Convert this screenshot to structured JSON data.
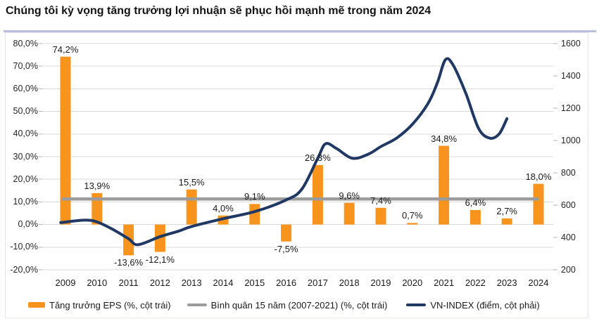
{
  "title": "Chúng tôi kỳ vọng tăng trưởng lợi nhuận sẽ phục hồi mạnh mẽ trong năm 2024",
  "chart_data": {
    "type": "combo",
    "categories": [
      "2009",
      "2010",
      "2011",
      "2012",
      "2013",
      "2014",
      "2015",
      "2016",
      "2017",
      "2018",
      "2019",
      "2020",
      "2021",
      "2022",
      "2023",
      "2024"
    ],
    "series": [
      {
        "name": "Tăng trưởng EPS (%, cột trái)",
        "type": "bar",
        "axis": "left",
        "color": "#F7941D",
        "values": [
          74.2,
          13.9,
          -13.6,
          -12.1,
          15.5,
          4.0,
          9.1,
          -7.5,
          26.3,
          9.6,
          7.4,
          0.7,
          34.8,
          6.4,
          2.7,
          18.0
        ],
        "labels": [
          "74,2%",
          "13,9%",
          "-13,6%",
          "-12,1%",
          "15,5%",
          "4,0%",
          "9,1%",
          "-7,5%",
          "26,3%",
          "9,6%",
          "7,4%",
          "0,7%",
          "34,8%",
          "6,4%",
          "2,7%",
          "18,0%"
        ]
      },
      {
        "name": "Bình quân 15 năm (2007-2021) (%, cột trái)",
        "type": "hline",
        "axis": "left",
        "color": "#9C9C9C",
        "value": 11.3
      },
      {
        "name": "VN-INDEX (điểm, cột phải)",
        "type": "line",
        "axis": "right",
        "color": "#1F3864",
        "points": [
          [
            2008.85,
            492
          ],
          [
            2009.6,
            507
          ],
          [
            2010,
            496
          ],
          [
            2010.5,
            450
          ],
          [
            2011,
            392
          ],
          [
            2011.3,
            355
          ],
          [
            2012,
            405
          ],
          [
            2012.6,
            440
          ],
          [
            2013,
            468
          ],
          [
            2014,
            516
          ],
          [
            2015,
            560
          ],
          [
            2016,
            632
          ],
          [
            2016.5,
            700
          ],
          [
            2017,
            890
          ],
          [
            2017.25,
            980
          ],
          [
            2017.6,
            950
          ],
          [
            2018.1,
            890
          ],
          [
            2018.6,
            915
          ],
          [
            2019,
            962
          ],
          [
            2019.5,
            1015
          ],
          [
            2020,
            1100
          ],
          [
            2020.5,
            1230
          ],
          [
            2020.8,
            1360
          ],
          [
            2021.05,
            1500
          ],
          [
            2021.3,
            1465
          ],
          [
            2021.7,
            1290
          ],
          [
            2022.1,
            1075
          ],
          [
            2022.45,
            1015
          ],
          [
            2022.75,
            1040
          ],
          [
            2023,
            1135
          ]
        ]
      }
    ],
    "left_axis": {
      "min": -20,
      "max": 80,
      "tick_values": [
        80,
        70,
        60,
        50,
        40,
        30,
        20,
        10,
        0,
        -10,
        -20
      ],
      "tick_labels": [
        "80,0%",
        "70,0%",
        "60,0%",
        "50,0%",
        "40,0%",
        "30,0%",
        "20,0%",
        "10,0%",
        "0,0%",
        "-10,0%",
        "-20,0%"
      ]
    },
    "right_axis": {
      "min": 200,
      "max": 1600,
      "tick_values": [
        1600,
        1400,
        1200,
        1000,
        800,
        600,
        400,
        200
      ],
      "tick_labels": [
        "1600",
        "1400",
        "1200",
        "1000",
        "800",
        "600",
        "400",
        "200"
      ]
    },
    "grid": true,
    "legend_position": "bottom",
    "colors": {
      "grid": "#d9d9d9",
      "tick": "#b5b5b5",
      "text": "#1a1a1a"
    }
  }
}
